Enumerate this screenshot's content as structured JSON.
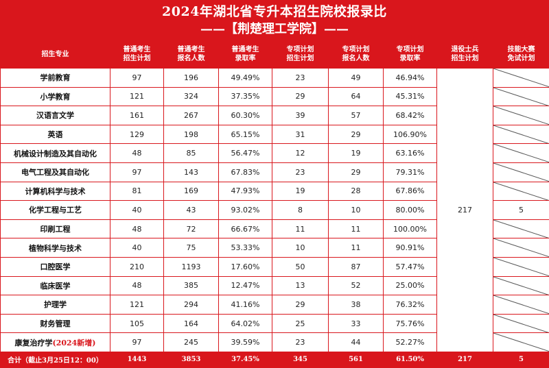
{
  "title": {
    "line1": "2024年湖北省专升本招生院校报录比",
    "line2": "——【荆楚理工学院】——"
  },
  "header": {
    "c0": [
      "招生专业"
    ],
    "c1": [
      "普通考生",
      "招生计划"
    ],
    "c2": [
      "普通考生",
      "报名人数"
    ],
    "c3": [
      "普通考生",
      "录取率"
    ],
    "c4": [
      "专项计划",
      "招生计划"
    ],
    "c5": [
      "专项计划",
      "报名人数"
    ],
    "c6": [
      "专项计划",
      "录取率"
    ],
    "c7": [
      "退役士兵",
      "招生计划"
    ],
    "c8": [
      "技能大赛",
      "免试计划"
    ]
  },
  "rows": [
    {
      "major": "学前教育",
      "plan": "97",
      "applicants": "196",
      "rate": "49.49%",
      "sp_plan": "23",
      "sp_applicants": "49",
      "sp_rate": "46.94%"
    },
    {
      "major": "小学教育",
      "plan": "121",
      "applicants": "324",
      "rate": "37.35%",
      "sp_plan": "29",
      "sp_applicants": "64",
      "sp_rate": "45.31%"
    },
    {
      "major": "汉语言文学",
      "plan": "161",
      "applicants": "267",
      "rate": "60.30%",
      "sp_plan": "39",
      "sp_applicants": "57",
      "sp_rate": "68.42%"
    },
    {
      "major": "英语",
      "plan": "129",
      "applicants": "198",
      "rate": "65.15%",
      "sp_plan": "31",
      "sp_applicants": "29",
      "sp_rate": "106.90%"
    },
    {
      "major": "机械设计制造及其自动化",
      "plan": "48",
      "applicants": "85",
      "rate": "56.47%",
      "sp_plan": "12",
      "sp_applicants": "19",
      "sp_rate": "63.16%"
    },
    {
      "major": "电气工程及其自动化",
      "plan": "97",
      "applicants": "143",
      "rate": "67.83%",
      "sp_plan": "23",
      "sp_applicants": "29",
      "sp_rate": "79.31%"
    },
    {
      "major": "计算机科学与技术",
      "plan": "81",
      "applicants": "169",
      "rate": "47.93%",
      "sp_plan": "19",
      "sp_applicants": "28",
      "sp_rate": "67.86%"
    },
    {
      "major": "化学工程与工艺",
      "plan": "40",
      "applicants": "43",
      "rate": "93.02%",
      "sp_plan": "8",
      "sp_applicants": "10",
      "sp_rate": "80.00%"
    },
    {
      "major": "印刷工程",
      "plan": "48",
      "applicants": "72",
      "rate": "66.67%",
      "sp_plan": "11",
      "sp_applicants": "11",
      "sp_rate": "100.00%"
    },
    {
      "major": "植物科学与技术",
      "plan": "40",
      "applicants": "75",
      "rate": "53.33%",
      "sp_plan": "10",
      "sp_applicants": "11",
      "sp_rate": "90.91%"
    },
    {
      "major": "口腔医学",
      "plan": "210",
      "applicants": "1193",
      "rate": "17.60%",
      "sp_plan": "50",
      "sp_applicants": "87",
      "sp_rate": "57.47%"
    },
    {
      "major": "临床医学",
      "plan": "48",
      "applicants": "385",
      "rate": "12.47%",
      "sp_plan": "13",
      "sp_applicants": "52",
      "sp_rate": "25.00%"
    },
    {
      "major": "护理学",
      "plan": "121",
      "applicants": "294",
      "rate": "41.16%",
      "sp_plan": "29",
      "sp_applicants": "38",
      "sp_rate": "76.32%"
    },
    {
      "major": "财务管理",
      "plan": "105",
      "applicants": "164",
      "rate": "64.02%",
      "sp_plan": "25",
      "sp_applicants": "33",
      "sp_rate": "75.76%"
    },
    {
      "major": "康复治疗学",
      "major_note": "(2024新增)",
      "plan": "97",
      "applicants": "245",
      "rate": "39.59%",
      "sp_plan": "23",
      "sp_applicants": "44",
      "sp_rate": "52.27%"
    }
  ],
  "merged": {
    "veteran_plan": "217",
    "skill_contest_plan": "5"
  },
  "total": {
    "label": "合计（截止3月25日12：00）",
    "plan": "1443",
    "applicants": "3853",
    "rate": "37.45%",
    "sp_plan": "345",
    "sp_applicants": "561",
    "sp_rate": "61.50%",
    "veteran_plan": "217",
    "skill_contest_plan": "5"
  },
  "colors": {
    "accent_red": "#d9161c"
  }
}
